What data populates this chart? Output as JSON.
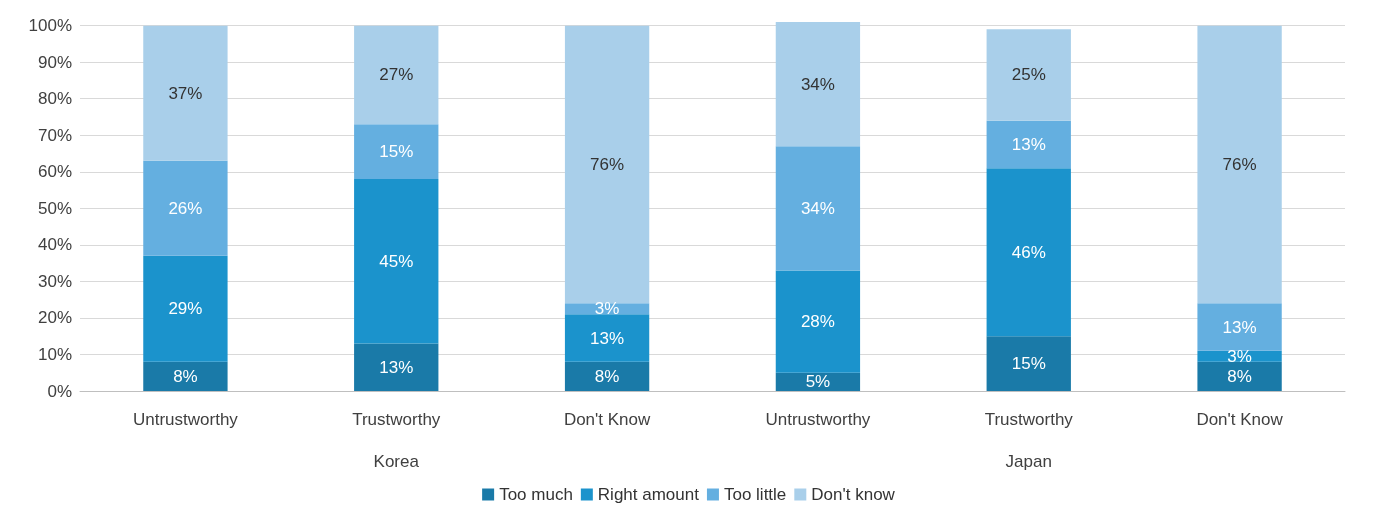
{
  "chart_data": {
    "type": "bar",
    "stacked": true,
    "categories": [
      "Untrustworthy",
      "Trustworthy",
      "Don't Know",
      "Untrustworthy",
      "Trustworthy",
      "Don't Know"
    ],
    "series": [
      {
        "name": "Too much",
        "color": "#1a7aa8",
        "values": [
          8,
          13,
          8,
          5,
          15,
          8
        ],
        "value_labels": [
          "8%",
          "13%",
          "8%",
          "5%",
          "15%",
          "8%"
        ]
      },
      {
        "name": "Right amount",
        "color": "#1b93cc",
        "values": [
          29,
          45,
          13,
          28,
          46,
          3
        ],
        "value_labels": [
          "29%",
          "45%",
          "13%",
          "28%",
          "46%",
          "3%"
        ]
      },
      {
        "name": "Too little",
        "color": "#64afe0",
        "values": [
          26,
          15,
          3,
          34,
          13,
          13
        ],
        "value_labels": [
          "26%",
          "15%",
          "3%",
          "34%",
          "13%",
          "13%"
        ]
      },
      {
        "name": "Don't know",
        "color": "#a9cfea",
        "values": [
          37,
          27,
          76,
          34,
          25,
          76
        ],
        "value_labels": [
          "37%",
          "27%",
          "76%",
          "34%",
          "25%",
          "76%"
        ]
      }
    ],
    "annotations": [
      "Korea",
      "Japan"
    ],
    "ylim": [
      0,
      101
    ],
    "yticks": [
      {
        "value": 0,
        "label": "0%"
      },
      {
        "value": 10,
        "label": "10%"
      },
      {
        "value": 20,
        "label": "20%"
      },
      {
        "value": 30,
        "label": "30%"
      },
      {
        "value": 40,
        "label": "40%"
      },
      {
        "value": 50,
        "label": "50%"
      },
      {
        "value": 60,
        "label": "60%"
      },
      {
        "value": 70,
        "label": "70%"
      },
      {
        "value": 80,
        "label": "80%"
      },
      {
        "value": 90,
        "label": "90%"
      },
      {
        "value": 100,
        "label": "100%"
      }
    ],
    "grid": "y",
    "legend": "bottom"
  }
}
